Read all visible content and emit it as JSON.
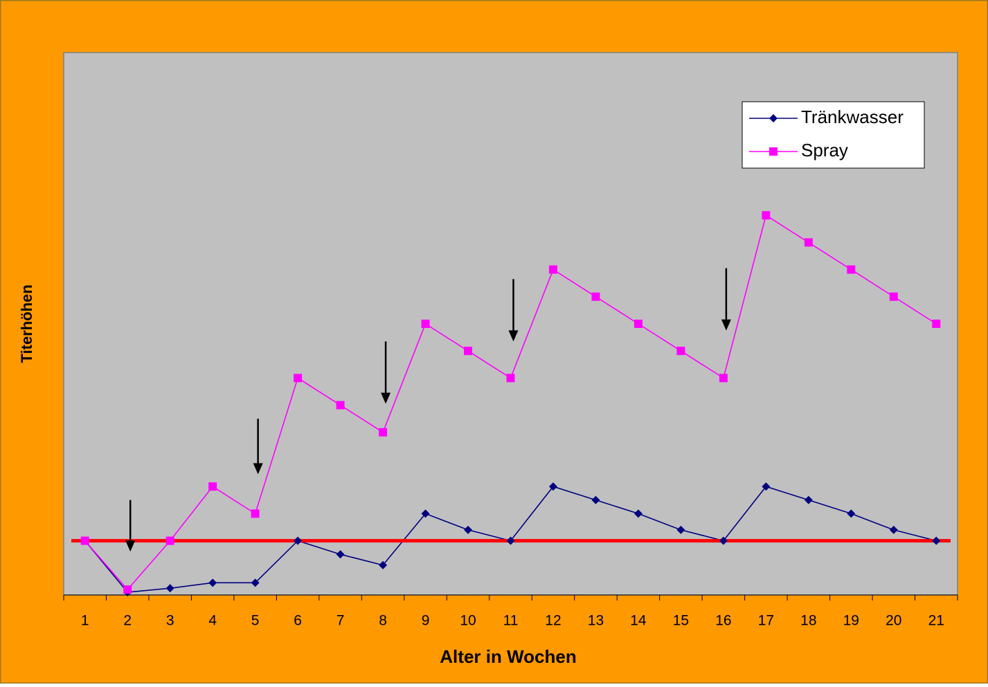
{
  "chart_data": {
    "type": "line",
    "x_label": "Alter in Wochen",
    "y_label": "Titerhöhen",
    "categories": [
      1,
      2,
      3,
      4,
      5,
      6,
      7,
      8,
      9,
      10,
      11,
      12,
      13,
      14,
      15,
      16,
      17,
      18,
      19,
      20,
      21
    ],
    "series": [
      {
        "name": "Tränkwasser",
        "color": "#000080",
        "marker": "diamond",
        "values": [
          2,
          0.1,
          0.25,
          0.45,
          0.45,
          2,
          1.5,
          1.1,
          3,
          2.4,
          2,
          4,
          3.5,
          3,
          2.4,
          2,
          4,
          3.5,
          3,
          2.4,
          2
        ]
      },
      {
        "name": "Spray",
        "color": "#FF00FF",
        "marker": "square",
        "values": [
          2,
          0.2,
          2,
          4,
          3,
          8,
          7,
          6,
          10,
          9,
          8,
          12,
          11,
          10,
          9,
          8,
          14,
          13,
          12,
          11,
          10
        ]
      }
    ],
    "threshold": {
      "value": 2,
      "color": "#FF0000"
    },
    "arrows": [
      {
        "category": 2,
        "from": 3.5,
        "to": 1.6
      },
      {
        "category": 5,
        "from": 6.5,
        "to": 4.45
      },
      {
        "category": 8,
        "from": 9.35,
        "to": 7.05
      },
      {
        "category": 11,
        "from": 11.65,
        "to": 9.35
      },
      {
        "category": 16,
        "from": 12.05,
        "to": 9.75
      }
    ],
    "ylim": [
      0,
      20
    ],
    "legend": "top-right"
  }
}
